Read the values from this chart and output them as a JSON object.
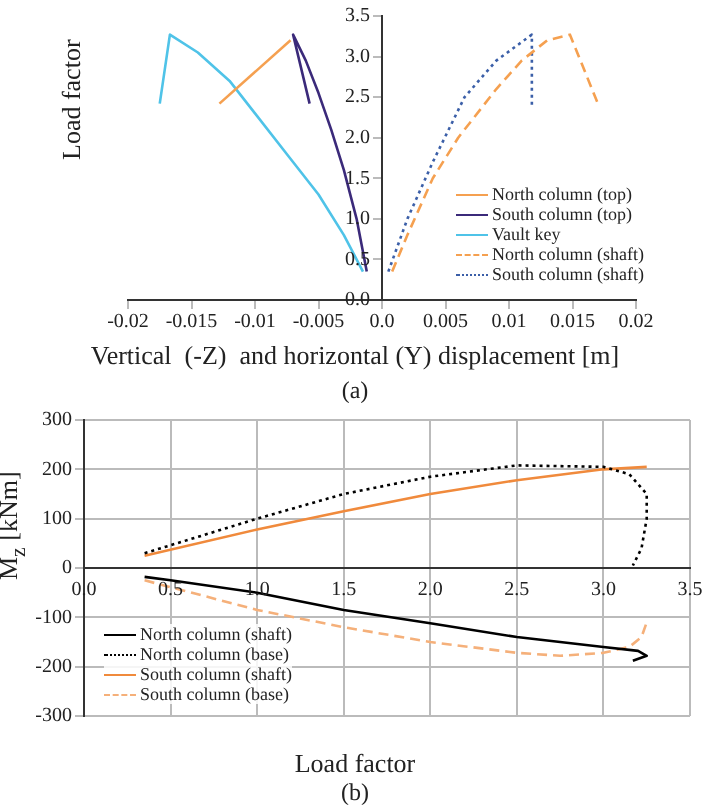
{
  "chart_data": [
    {
      "type": "line",
      "xlabel": "Vertical  (-Z)  and horizontal (Y) displacement [m]",
      "ylabel": "Load factor",
      "xlim": [
        -0.02,
        0.02
      ],
      "xticks": [
        -0.02,
        -0.015,
        -0.01,
        -0.005,
        {
          "value": 0,
          "label": "0.0"
        },
        0.005,
        0.01,
        0.015,
        0.02
      ],
      "ylim": [
        0,
        3.5
      ],
      "yticks": [
        {
          "value": 0,
          "label": "0.0"
        },
        0.5,
        {
          "value": 1,
          "label": "1.0"
        },
        1.5,
        {
          "value": 2,
          "label": "2.0"
        },
        2.5,
        {
          "value": 3,
          "label": "3.0"
        },
        3.5
      ],
      "legend": "bottom right",
      "marker": "none",
      "annotations": [
        "(a)"
      ],
      "series": [
        {
          "name": "North column (top)",
          "color": "#f5a050",
          "line_style": "solid",
          "x": [
            -0.0128,
            -0.0072
          ],
          "values": [
            2.42,
            3.2
          ]
        },
        {
          "name": "South column (top)",
          "color": "#3b2a7a",
          "line_style": "solid",
          "x": [
            -0.0012,
            -0.002,
            -0.003,
            -0.004,
            -0.005,
            -0.006,
            -0.007,
            -0.0057
          ],
          "values": [
            0.35,
            1.0,
            1.6,
            2.1,
            2.55,
            2.95,
            3.27,
            2.42
          ]
        },
        {
          "name": "Vault key",
          "color": "#4fc3e8",
          "line_style": "solid",
          "x": [
            -0.0015,
            -0.003,
            -0.005,
            -0.0075,
            -0.01,
            -0.012,
            -0.0145,
            -0.0167,
            -0.0175
          ],
          "values": [
            0.35,
            0.8,
            1.3,
            1.8,
            2.3,
            2.7,
            3.05,
            3.27,
            2.42
          ]
        },
        {
          "name": "North column (shaft)",
          "color": "#f5a050",
          "line_style": "dashed",
          "x": [
            0.0008,
            0.002,
            0.004,
            0.006,
            0.009,
            0.011,
            0.013,
            0.0148,
            0.017
          ],
          "values": [
            0.35,
            0.8,
            1.5,
            2.0,
            2.6,
            2.95,
            3.2,
            3.27,
            2.42
          ]
        },
        {
          "name": "South column (shaft)",
          "color": "#3b5fa8",
          "line_style": "dotted",
          "x": [
            0.0005,
            0.002,
            0.004,
            0.0065,
            0.009,
            0.0118,
            0.0118
          ],
          "values": [
            0.35,
            1.0,
            1.7,
            2.5,
            2.95,
            3.27,
            2.4
          ]
        }
      ]
    },
    {
      "type": "line",
      "xlabel": "Load factor",
      "ylabel": "M$_{z}$ [kNm]",
      "xlim": [
        0,
        3.5
      ],
      "xticks": [
        {
          "value": 0,
          "label": "0.0"
        },
        0.5,
        {
          "value": 1,
          "label": "1.0"
        },
        1.5,
        {
          "value": 2,
          "label": "2.0"
        },
        2.5,
        {
          "value": 3,
          "label": "3.0"
        },
        3.5
      ],
      "ylim": [
        -300,
        300
      ],
      "yticks": [
        -300,
        -200,
        -100,
        0,
        100,
        200,
        300
      ],
      "grid": true,
      "legend": "bottom left",
      "marker": "none",
      "annotations": [
        "(b)"
      ],
      "series": [
        {
          "name": "North column (shaft)",
          "color": "#000000",
          "line_style": "solid",
          "x": [
            0.35,
            0.5,
            1.0,
            1.5,
            2.0,
            2.5,
            3.0,
            3.2,
            3.25,
            3.17
          ],
          "values": [
            -18,
            -25,
            -50,
            -85,
            -112,
            -140,
            -160,
            -168,
            -178,
            -188
          ]
        },
        {
          "name": "North column (base)",
          "color": "#000000",
          "line_style": "dotted",
          "x": [
            0.35,
            1.0,
            1.5,
            2.0,
            2.5,
            3.0,
            3.15,
            3.25,
            3.25,
            3.22,
            3.17
          ],
          "values": [
            30,
            100,
            150,
            185,
            208,
            205,
            190,
            150,
            100,
            40,
            5
          ]
        },
        {
          "name": "South column (shaft)",
          "color": "#f08a3c",
          "line_style": "solid",
          "x": [
            0.35,
            1.0,
            1.5,
            2.0,
            2.5,
            3.0,
            3.25
          ],
          "values": [
            25,
            78,
            115,
            150,
            178,
            200,
            205
          ]
        },
        {
          "name": "South column (base)",
          "color": "#f5b07a",
          "line_style": "dashed",
          "x": [
            0.35,
            1.0,
            1.5,
            2.0,
            2.5,
            2.75,
            3.0,
            3.15,
            3.22,
            3.25
          ],
          "values": [
            -25,
            -85,
            -120,
            -150,
            -172,
            -178,
            -172,
            -160,
            -140,
            -110
          ]
        }
      ]
    }
  ]
}
